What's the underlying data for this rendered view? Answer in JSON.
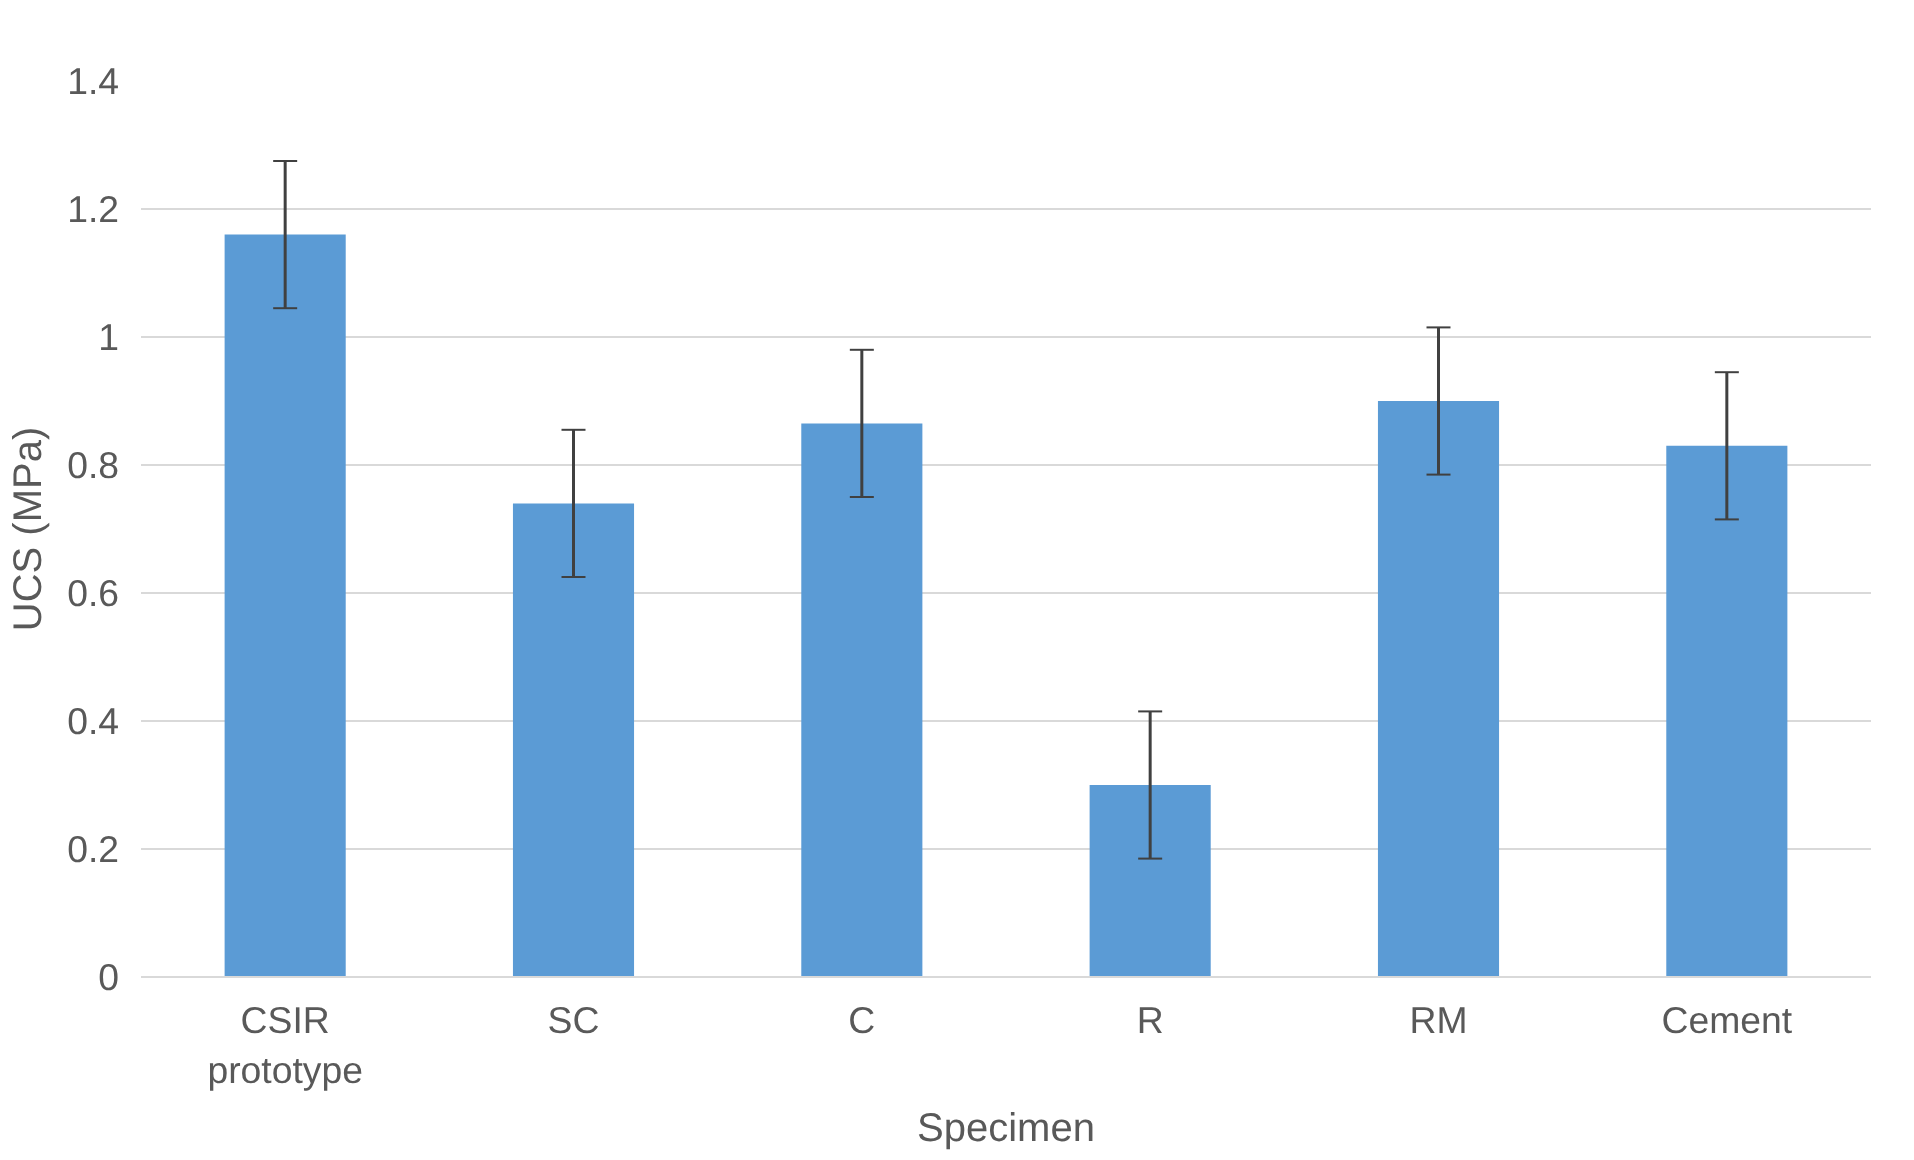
{
  "chart_data": {
    "type": "bar",
    "xlabel": "Specimen",
    "ylabel": "UCS (MPa)",
    "categories": [
      "CSIR prototype",
      "SC",
      "C",
      "R",
      "RM",
      "Cement"
    ],
    "series": [
      {
        "color": "#5b9bd5",
        "values": [
          1.16,
          0.74,
          0.865,
          0.3,
          0.9,
          0.83
        ],
        "errors": [
          0.115,
          0.115,
          0.115,
          0.115,
          0.115,
          0.115
        ]
      }
    ],
    "ylim": [
      0,
      1.4
    ],
    "yticks": [
      0,
      {
        "value": 0.2,
        "label": "0.2"
      },
      {
        "value": 0.4,
        "label": "0.4"
      },
      {
        "value": 0.6,
        "label": "0.6"
      },
      {
        "value": 0.8,
        "label": "0.8"
      },
      1,
      {
        "value": 1.2,
        "label": "1.2"
      },
      {
        "value": 1.4,
        "label": "1.4"
      }
    ],
    "grid": "y"
  }
}
